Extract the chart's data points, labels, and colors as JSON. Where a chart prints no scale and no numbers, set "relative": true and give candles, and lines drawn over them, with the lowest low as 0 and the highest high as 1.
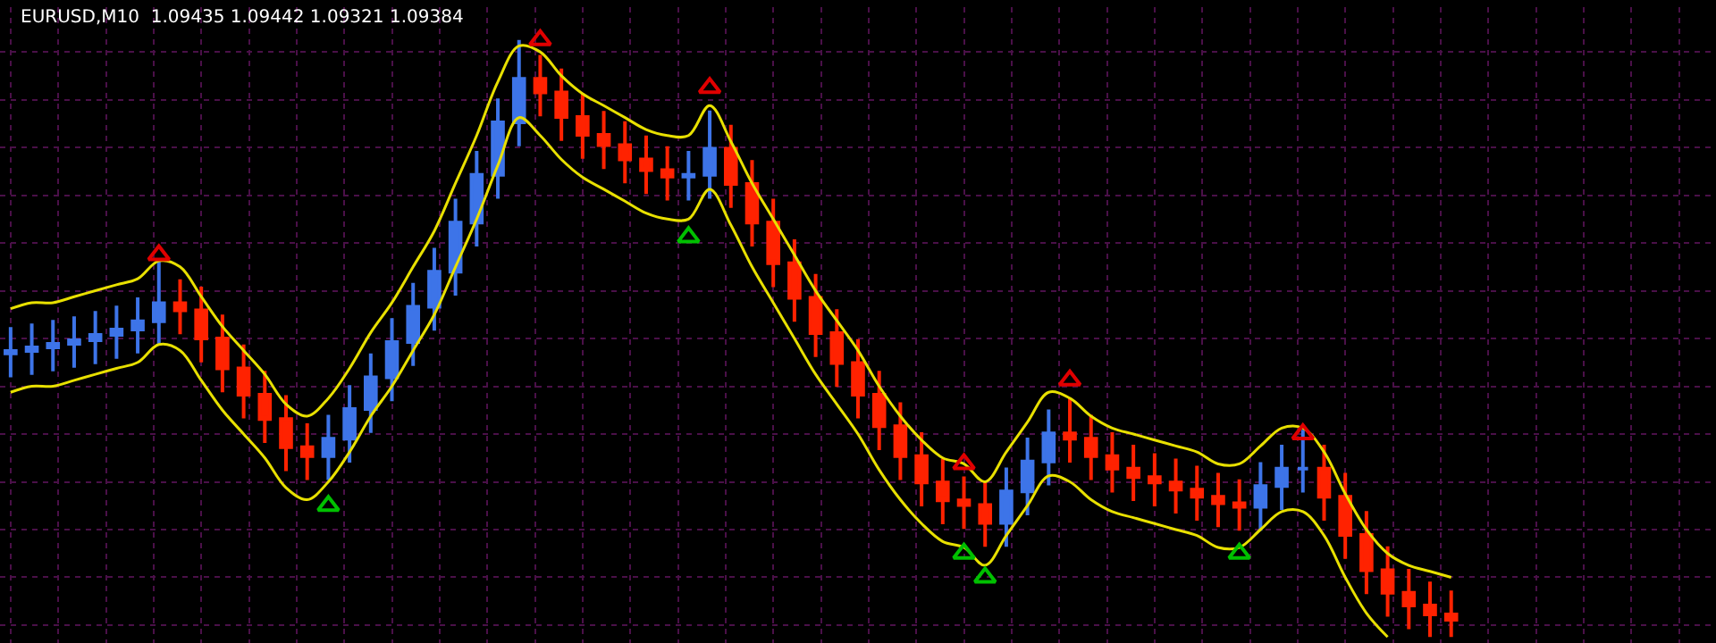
{
  "chart_data": {
    "type": "candlestick",
    "title": "EURUSD,M10  1.09435 1.09442 1.09321 1.09384",
    "relative": true,
    "grid": true,
    "categories": [
      null,
      null,
      null,
      null,
      null,
      null,
      null,
      null,
      null,
      null,
      null,
      null,
      null,
      null,
      null,
      null,
      null,
      null,
      null,
      null,
      null,
      null,
      null,
      null,
      null,
      null,
      null,
      null,
      null,
      null,
      null,
      null,
      null,
      null,
      null,
      null,
      null,
      null,
      null,
      null,
      null,
      null,
      null,
      null,
      null,
      null,
      null,
      null,
      null,
      null,
      null,
      null,
      null,
      null,
      null,
      null,
      null,
      null,
      null,
      null,
      null,
      null,
      null,
      null,
      null,
      null,
      null,
      null,
      null
    ],
    "ohlc": [
      [
        0.475,
        0.519,
        0.435,
        0.479
      ],
      [
        0.479,
        0.525,
        0.439,
        0.485
      ],
      [
        0.485,
        0.531,
        0.445,
        0.491
      ],
      [
        0.491,
        0.537,
        0.451,
        0.497
      ],
      [
        0.497,
        0.546,
        0.457,
        0.506
      ],
      [
        0.506,
        0.555,
        0.466,
        0.515
      ],
      [
        0.515,
        0.569,
        0.475,
        0.529
      ],
      [
        0.529,
        0.63,
        0.489,
        0.559
      ],
      [
        0.559,
        0.599,
        0.507,
        0.547
      ],
      [
        0.547,
        0.587,
        0.46,
        0.5
      ],
      [
        0.5,
        0.54,
        0.41,
        0.45
      ],
      [
        0.45,
        0.49,
        0.366,
        0.406
      ],
      [
        0.406,
        0.446,
        0.325,
        0.365
      ],
      [
        0.365,
        0.405,
        0.278,
        0.318
      ],
      [
        0.318,
        0.358,
        0.263,
        0.303
      ],
      [
        0.303,
        0.372,
        0.263,
        0.332
      ],
      [
        0.332,
        0.422,
        0.292,
        0.382
      ],
      [
        0.382,
        0.475,
        0.342,
        0.435
      ],
      [
        0.435,
        0.534,
        0.395,
        0.494
      ],
      [
        0.494,
        0.593,
        0.454,
        0.553
      ],
      [
        0.553,
        0.652,
        0.513,
        0.612
      ],
      [
        0.612,
        0.734,
        0.572,
        0.694
      ],
      [
        0.694,
        0.814,
        0.654,
        0.774
      ],
      [
        0.774,
        0.902,
        0.734,
        0.862
      ],
      [
        0.862,
        1.0,
        0.822,
        0.935
      ],
      [
        0.935,
        0.975,
        0.872,
        0.912
      ],
      [
        0.912,
        0.952,
        0.831,
        0.871
      ],
      [
        0.871,
        0.911,
        0.801,
        0.841
      ],
      [
        0.841,
        0.881,
        0.784,
        0.824
      ],
      [
        0.824,
        0.864,
        0.76,
        0.8
      ],
      [
        0.8,
        0.84,
        0.742,
        0.782
      ],
      [
        0.782,
        0.822,
        0.731,
        0.771
      ],
      [
        0.771,
        0.814,
        0.731,
        0.774
      ],
      [
        0.774,
        0.882,
        0.734,
        0.818
      ],
      [
        0.818,
        0.858,
        0.719,
        0.759
      ],
      [
        0.759,
        0.799,
        0.654,
        0.694
      ],
      [
        0.694,
        0.734,
        0.586,
        0.626
      ],
      [
        0.626,
        0.666,
        0.528,
        0.568
      ],
      [
        0.568,
        0.608,
        0.469,
        0.509
      ],
      [
        0.509,
        0.549,
        0.419,
        0.459
      ],
      [
        0.459,
        0.499,
        0.366,
        0.406
      ],
      [
        0.406,
        0.446,
        0.313,
        0.353
      ],
      [
        0.353,
        0.393,
        0.263,
        0.303
      ],
      [
        0.303,
        0.343,
        0.219,
        0.259
      ],
      [
        0.259,
        0.299,
        0.189,
        0.229
      ],
      [
        0.229,
        0.269,
        0.181,
        0.221
      ],
      [
        0.221,
        0.261,
        0.151,
        0.191
      ],
      [
        0.191,
        0.284,
        0.151,
        0.244
      ],
      [
        0.244,
        0.334,
        0.204,
        0.294
      ],
      [
        0.294,
        0.381,
        0.254,
        0.341
      ],
      [
        0.341,
        0.4,
        0.292,
        0.332
      ],
      [
        0.332,
        0.372,
        0.263,
        0.303
      ],
      [
        0.303,
        0.343,
        0.242,
        0.282
      ],
      [
        0.282,
        0.322,
        0.228,
        0.268
      ],
      [
        0.268,
        0.308,
        0.219,
        0.259
      ],
      [
        0.259,
        0.299,
        0.207,
        0.247
      ],
      [
        0.247,
        0.287,
        0.195,
        0.235
      ],
      [
        0.235,
        0.275,
        0.184,
        0.224
      ],
      [
        0.224,
        0.264,
        0.178,
        0.218
      ],
      [
        0.218,
        0.293,
        0.178,
        0.253
      ],
      [
        0.253,
        0.322,
        0.213,
        0.282
      ],
      [
        0.282,
        0.347,
        0.242,
        0.282
      ],
      [
        0.282,
        0.322,
        0.195,
        0.235
      ],
      [
        0.235,
        0.275,
        0.131,
        0.171
      ],
      [
        0.171,
        0.211,
        0.072,
        0.112
      ],
      [
        0.112,
        0.152,
        0.034,
        0.074
      ],
      [
        0.074,
        0.114,
        0.013,
        0.053
      ],
      [
        0.053,
        0.093,
        0.0,
        0.038
      ],
      [
        0.038,
        0.078,
        0.0,
        0.029
      ]
    ],
    "series": [
      {
        "type": "line",
        "color": "#e8e000",
        "values": [
          0.55,
          0.56,
          0.56,
          0.57,
          0.58,
          0.59,
          0.6,
          0.63,
          0.62,
          0.57,
          0.52,
          0.48,
          0.44,
          0.39,
          0.37,
          0.4,
          0.45,
          0.51,
          0.56,
          0.62,
          0.68,
          0.76,
          0.84,
          0.93,
          0.99,
          0.98,
          0.94,
          0.91,
          0.89,
          0.87,
          0.85,
          0.84,
          0.84,
          0.89,
          0.83,
          0.76,
          0.7,
          0.64,
          0.58,
          0.53,
          0.48,
          0.42,
          0.37,
          0.33,
          0.3,
          0.29,
          0.26,
          0.31,
          0.36,
          0.41,
          0.4,
          0.37,
          0.35,
          0.34,
          0.33,
          0.32,
          0.31,
          0.29,
          0.29,
          0.32,
          0.35,
          0.35,
          0.31,
          0.24,
          0.18,
          0.14,
          0.12,
          0.11,
          0.1
        ]
      },
      {
        "type": "line",
        "color": "#e8e000",
        "values": [
          0.41,
          0.42,
          0.42,
          0.43,
          0.44,
          0.45,
          0.46,
          0.49,
          0.48,
          0.43,
          0.38,
          0.34,
          0.3,
          0.25,
          0.23,
          0.26,
          0.31,
          0.37,
          0.42,
          0.48,
          0.54,
          0.62,
          0.7,
          0.79,
          0.87,
          0.84,
          0.8,
          0.77,
          0.75,
          0.73,
          0.71,
          0.7,
          0.7,
          0.75,
          0.69,
          0.62,
          0.56,
          0.5,
          0.44,
          0.39,
          0.34,
          0.28,
          0.23,
          0.19,
          0.16,
          0.15,
          0.12,
          0.17,
          0.22,
          0.27,
          0.26,
          0.23,
          0.21,
          0.2,
          0.19,
          0.18,
          0.17,
          0.15,
          0.15,
          0.18,
          0.21,
          0.21,
          0.17,
          0.1,
          0.04,
          0.0,
          null,
          null,
          null
        ]
      },
      {
        "type": "scatter",
        "color": "#e00000",
        "marker": "triangle",
        "values": [
          null,
          null,
          null,
          null,
          null,
          null,
          null,
          0.64,
          null,
          null,
          null,
          null,
          null,
          null,
          null,
          null,
          null,
          null,
          null,
          null,
          null,
          null,
          null,
          null,
          null,
          1.0,
          null,
          null,
          null,
          null,
          null,
          null,
          null,
          0.92,
          null,
          null,
          null,
          null,
          null,
          null,
          null,
          null,
          null,
          null,
          null,
          0.29,
          null,
          null,
          null,
          null,
          0.43,
          null,
          null,
          null,
          null,
          null,
          null,
          null,
          null,
          null,
          null,
          0.34,
          null,
          null,
          null,
          null,
          null,
          null,
          null
        ]
      },
      {
        "type": "scatter",
        "color": "#00c000",
        "marker": "triangle",
        "values": [
          null,
          null,
          null,
          null,
          null,
          null,
          null,
          null,
          null,
          null,
          null,
          null,
          null,
          null,
          null,
          0.22,
          null,
          null,
          null,
          null,
          null,
          null,
          null,
          null,
          null,
          null,
          null,
          null,
          null,
          null,
          null,
          null,
          0.67,
          null,
          null,
          null,
          null,
          null,
          null,
          null,
          null,
          null,
          null,
          null,
          null,
          0.14,
          0.1,
          null,
          null,
          null,
          null,
          null,
          null,
          null,
          null,
          null,
          null,
          null,
          0.14,
          null,
          null,
          null,
          null,
          null,
          null,
          null,
          null,
          null,
          null
        ]
      }
    ]
  }
}
